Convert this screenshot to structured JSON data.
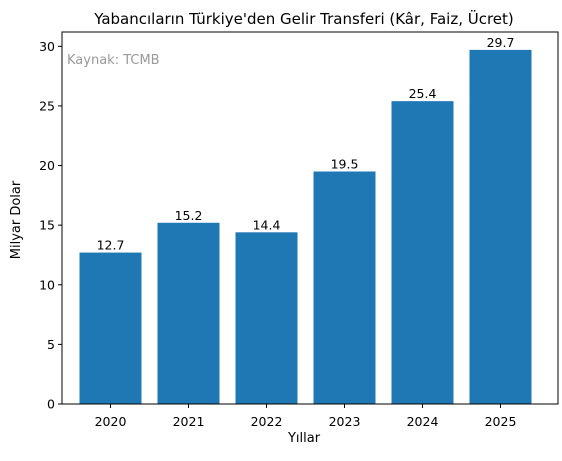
{
  "chart_data": {
    "type": "bar",
    "title": "Yabancıların Türkiye'den Gelir Transferi (Kâr, Faiz, Ücret)",
    "xlabel": "Yıllar",
    "ylabel": "Milyar Dolar",
    "annotation": "Kaynak: TCMB",
    "categories": [
      "2020",
      "2021",
      "2022",
      "2023",
      "2024",
      "2025"
    ],
    "values": [
      12.7,
      15.2,
      14.4,
      19.5,
      25.4,
      29.7
    ],
    "value_labels": [
      "12.7",
      "15.2",
      "14.4",
      "19.5",
      "25.4",
      "29.7"
    ],
    "ylim": [
      0,
      31.2
    ],
    "yticks": [
      0,
      5,
      10,
      15,
      20,
      25,
      30
    ],
    "grid": false,
    "bar_color": "#1f77b4",
    "annotation_color": "#999999"
  }
}
